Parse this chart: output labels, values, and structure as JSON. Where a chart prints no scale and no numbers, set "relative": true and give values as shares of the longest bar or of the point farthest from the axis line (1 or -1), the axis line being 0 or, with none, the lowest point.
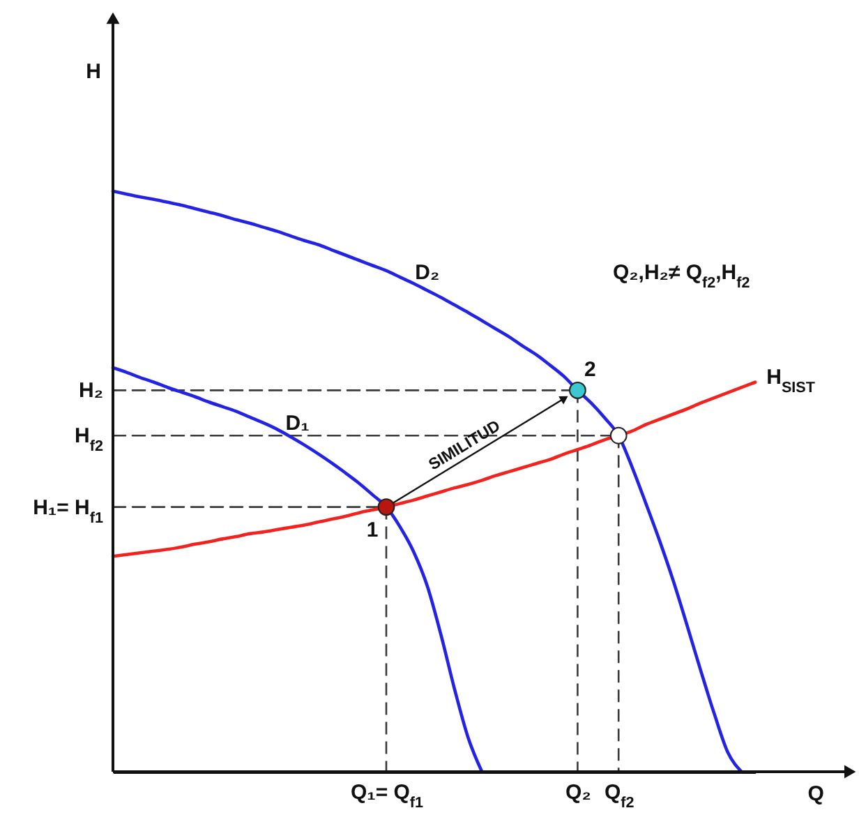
{
  "chart_data": {
    "type": "line",
    "relative": true,
    "xlabel": "Q",
    "categories": [
      null,
      null,
      null,
      null,
      null,
      null,
      null,
      null,
      null,
      null,
      null,
      null,
      null,
      null,
      null,
      null,
      null,
      null,
      null,
      null,
      "Q₁= Q$_{f1}$",
      null,
      null,
      null,
      null,
      null,
      null,
      null,
      null,
      null,
      null,
      null,
      null,
      null,
      "Q₂",
      null,
      null,
      "Q$_{f2}$",
      null,
      null,
      null,
      null,
      null,
      null,
      null,
      null,
      null,
      null
    ],
    "series": [
      {
        "name": "H₂",
        "color": "#3a3a3a",
        "line_style": "dashed",
        "values": [
          0.657,
          0.657,
          0.657,
          0.657,
          0.657,
          0.657,
          0.657,
          0.657,
          0.657,
          0.657,
          0.657,
          0.657,
          0.657,
          0.657,
          0.657,
          0.657,
          0.657,
          0.657,
          0.657,
          0.657,
          0.657,
          0.657,
          0.657,
          0.657,
          0.657,
          0.657,
          0.657,
          0.657,
          0.657,
          0.657,
          0.657,
          0.657,
          0.657,
          0.657,
          0.657,
          null,
          null,
          null,
          null,
          null,
          null,
          null,
          null,
          null,
          null,
          null,
          null,
          null
        ]
      },
      {
        "name": "H$_{f2}$",
        "color": "#3a3a3a",
        "line_style": "dashed",
        "values": [
          0.579,
          0.579,
          0.579,
          0.579,
          0.579,
          0.579,
          0.579,
          0.579,
          0.579,
          0.579,
          0.579,
          0.579,
          0.579,
          0.579,
          0.579,
          0.579,
          0.579,
          0.579,
          0.579,
          0.579,
          0.579,
          0.579,
          0.579,
          0.579,
          0.579,
          0.579,
          0.579,
          0.579,
          0.579,
          0.579,
          0.579,
          0.579,
          0.579,
          0.579,
          0.579,
          0.579,
          0.579,
          0.579,
          null,
          null,
          null,
          null,
          null,
          null,
          null,
          null,
          null,
          null
        ]
      },
      {
        "name": "H₁= H$_{f1}$",
        "color": "#3a3a3a",
        "line_style": "dashed",
        "values": [
          0.456,
          0.456,
          0.456,
          0.456,
          0.456,
          0.456,
          0.456,
          0.456,
          0.456,
          0.456,
          0.456,
          0.456,
          0.456,
          0.456,
          0.456,
          0.456,
          0.456,
          0.456,
          0.456,
          0.456,
          0.456,
          null,
          null,
          null,
          null,
          null,
          null,
          null,
          null,
          null,
          null,
          null,
          null,
          null,
          null,
          null,
          null,
          null,
          null,
          null,
          null,
          null,
          null,
          null,
          null,
          null,
          null,
          null
        ]
      },
      {
        "type": "lollipop",
        "color": "#3a3a3a",
        "line_style": "dashed",
        "marker": "circle",
        "values": [
          null,
          null,
          null,
          null,
          null,
          null,
          null,
          null,
          null,
          null,
          null,
          null,
          null,
          null,
          null,
          null,
          null,
          null,
          null,
          null,
          0.456,
          null,
          null,
          null,
          null,
          null,
          null,
          null,
          null,
          null,
          null,
          null,
          null,
          null,
          0.657,
          null,
          null,
          0.579,
          null,
          null,
          null,
          null,
          null,
          null,
          null,
          null,
          null,
          null
        ],
        "colors": [
          null,
          null,
          null,
          null,
          null,
          null,
          null,
          null,
          null,
          null,
          null,
          null,
          null,
          null,
          null,
          null,
          null,
          null,
          null,
          null,
          "#b8160f",
          null,
          null,
          null,
          null,
          null,
          null,
          null,
          null,
          null,
          null,
          null,
          null,
          null,
          "#3cc8d2",
          null,
          null,
          "#ffffff",
          null,
          null,
          null,
          null,
          null,
          null,
          null,
          null,
          null,
          null
        ]
      },
      {
        "name": "D₂",
        "color": "#2323e6",
        "values": [
          1,
          0.995,
          0.99,
          0.986,
          0.981,
          0.976,
          0.97,
          0.964,
          0.958,
          0.951,
          0.945,
          0.938,
          0.931,
          0.923,
          0.915,
          0.908,
          0.899,
          0.89,
          0.881,
          0.872,
          0.863,
          0.852,
          0.841,
          0.829,
          0.817,
          0.804,
          0.791,
          0.777,
          0.763,
          0.749,
          0.733,
          0.718,
          0.7,
          0.681,
          0.657,
          0.635,
          0.609,
          0.579,
          0.524,
          0.462,
          0.398,
          0.329,
          0.253,
          0.175,
          0.1,
          0.033,
          0,
          null
        ]
      },
      {
        "name": "D₁",
        "color": "#2323e6",
        "values": [
          0.696,
          0.688,
          0.679,
          0.671,
          0.662,
          0.654,
          0.646,
          0.637,
          0.629,
          0.621,
          0.611,
          0.601,
          0.59,
          0.577,
          0.563,
          0.548,
          0.532,
          0.515,
          0.497,
          0.477,
          0.456,
          0.422,
          0.379,
          0.32,
          0.236,
          0.142,
          0.058,
          0,
          null,
          null,
          null,
          null,
          null,
          null,
          null,
          null,
          null,
          null,
          null,
          null,
          null,
          null,
          null,
          null,
          null,
          null,
          null,
          null
        ]
      },
      {
        "name": "H$_{SIST}$",
        "color": "#f2221f",
        "values": [
          0.371,
          0.374,
          0.377,
          0.38,
          0.383,
          0.387,
          0.392,
          0.396,
          0.401,
          0.405,
          0.41,
          0.413,
          0.417,
          0.421,
          0.425,
          0.43,
          0.435,
          0.44,
          0.446,
          0.451,
          0.456,
          0.462,
          0.468,
          0.475,
          0.482,
          0.489,
          0.495,
          0.502,
          0.51,
          0.517,
          0.524,
          0.531,
          0.538,
          0.547,
          0.555,
          0.563,
          0.572,
          0.579,
          0.587,
          0.598,
          0.607,
          0.616,
          0.625,
          0.635,
          0.644,
          0.653,
          0.662,
          0.671
        ]
      }
    ],
    "annotations": [
      "H",
      "Q₂,H₂≠ Q$_{f2}$,H$_{f2}$",
      "SIMILITUD",
      {
        "text": "1",
        "x": "Q₁= Q$_{f1}$",
        "y": 0.456
      },
      {
        "text": "2",
        "x": "Q₂",
        "y": 0.657
      }
    ]
  }
}
